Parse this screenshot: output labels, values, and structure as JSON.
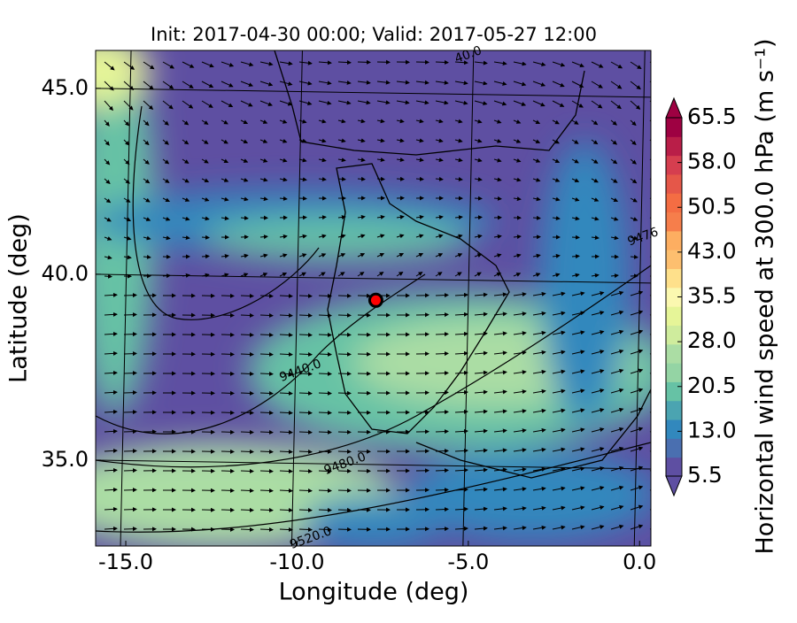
{
  "chart_data": {
    "type": "wind-map",
    "title": "Init: 2017-04-30 00:00; Valid: 2017-05-27 12:00",
    "x_label": "Longitude (deg)",
    "y_label": "Latitude (deg)",
    "xlim": [
      -15.88,
      0.33
    ],
    "ylim": [
      32.69,
      46.02
    ],
    "xticks": [
      {
        "value": -15,
        "label": "-15.0"
      },
      {
        "value": -10,
        "label": "-10.0"
      },
      {
        "value": -5,
        "label": "-5.0"
      },
      {
        "value": 0,
        "label": "0.0"
      }
    ],
    "yticks": [
      {
        "value": 35,
        "label": "35.0"
      },
      {
        "value": 40,
        "label": "40.0"
      },
      {
        "value": 45,
        "label": "45.0"
      }
    ],
    "grid": true,
    "contour_labels": [
      {
        "text": "9440.0",
        "x": -9.9,
        "y": 37.4
      },
      {
        "text": "9480.0",
        "x": -8.6,
        "y": 34.9
      },
      {
        "text": "9520.0",
        "x": -9.6,
        "y": 32.9
      },
      {
        "text": "9476",
        "x": 0.1,
        "y": 41.0
      },
      {
        "text": "40.0",
        "x": -5.0,
        "y": 45.9
      }
    ],
    "marker": {
      "x": -7.7,
      "y": 39.3,
      "color": "#ff0000"
    },
    "colorbar": {
      "label": "Horizontal wind speed at 300.0 hPa (m s⁻¹)",
      "clim": [
        5.5,
        65.5
      ],
      "ticks": [
        5.5,
        {
          "value": 13,
          "label": "13.0"
        },
        {
          "value": 20.5,
          "label": "20.5"
        },
        {
          "value": 28,
          "label": "28.0"
        },
        {
          "value": 35.5,
          "label": "35.5"
        },
        {
          "value": 43,
          "label": "43.0"
        },
        {
          "value": 50.5,
          "label": "50.5"
        },
        {
          "value": 58,
          "label": "58.0"
        },
        65.5
      ],
      "colors": [
        "#5e4fa2",
        "#4a6fb0",
        "#3288bd",
        "#4ba4b1",
        "#66c2a5",
        "#94d4a4",
        "#abdda4",
        "#cfec9d",
        "#e6f598",
        "#fbf8b0",
        "#fee08b",
        "#fdbf6f",
        "#fdae61",
        "#f67e4b",
        "#f46d43",
        "#e55749",
        "#d53e4f",
        "#b91e48",
        "#9e0142"
      ]
    }
  }
}
